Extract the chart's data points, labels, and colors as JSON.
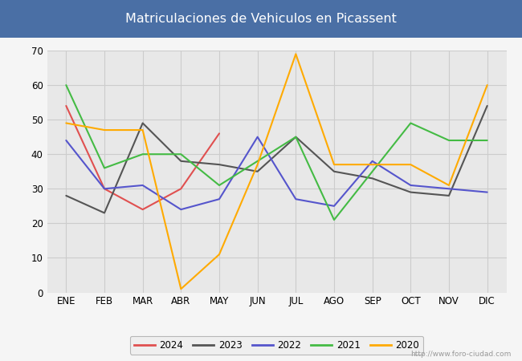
{
  "title": "Matriculaciones de Vehiculos en Picassent",
  "title_bg_color": "#4a6fa5",
  "title_text_color": "#ffffff",
  "months": [
    "ENE",
    "FEB",
    "MAR",
    "ABR",
    "MAY",
    "JUN",
    "JUL",
    "AGO",
    "SEP",
    "OCT",
    "NOV",
    "DIC"
  ],
  "series": {
    "2024": {
      "color": "#e05050",
      "data": [
        54,
        30,
        24,
        30,
        46,
        null,
        null,
        null,
        null,
        null,
        null,
        null
      ]
    },
    "2023": {
      "color": "#555555",
      "data": [
        28,
        23,
        49,
        38,
        37,
        35,
        45,
        35,
        33,
        29,
        28,
        54
      ]
    },
    "2022": {
      "color": "#5555cc",
      "data": [
        44,
        30,
        31,
        24,
        27,
        45,
        27,
        25,
        38,
        31,
        30,
        29
      ]
    },
    "2021": {
      "color": "#44bb44",
      "data": [
        60,
        36,
        40,
        40,
        31,
        38,
        45,
        21,
        35,
        49,
        44,
        44
      ]
    },
    "2020": {
      "color": "#ffaa00",
      "data": [
        49,
        47,
        47,
        1,
        11,
        37,
        69,
        37,
        37,
        37,
        31,
        60
      ]
    }
  },
  "ylim": [
    0,
    70
  ],
  "yticks": [
    0,
    10,
    20,
    30,
    40,
    50,
    60,
    70
  ],
  "grid_color": "#cccccc",
  "plot_bg_color": "#e8e8e8",
  "fig_bg_color": "#f5f5f5",
  "watermark": "http://www.foro-ciudad.com",
  "legend_order": [
    "2024",
    "2023",
    "2022",
    "2021",
    "2020"
  ]
}
